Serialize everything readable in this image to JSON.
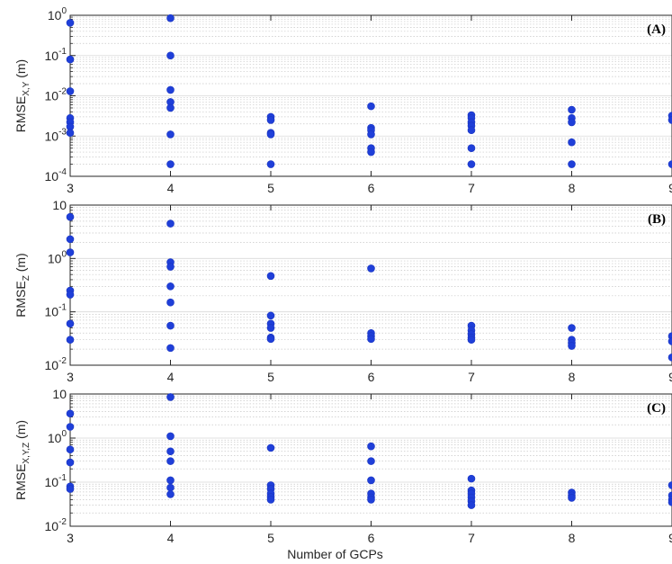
{
  "chart_data": [
    {
      "type": "scatter",
      "panel_label": "(A)",
      "ylabel_main": "RMSE",
      "ylabel_sub": "X,Y",
      "ylabel_unit": " (m)",
      "yscale": "log",
      "ylim": [
        0.0001,
        1
      ],
      "xlim": [
        3,
        9
      ],
      "xticks": [
        "3",
        "4",
        "5",
        "6",
        "7",
        "8",
        "9"
      ],
      "yticks": [
        {
          "value": 0.0001,
          "base": "10",
          "exp": "-4"
        },
        {
          "value": 0.001,
          "base": "10",
          "exp": "-3"
        },
        {
          "value": 0.01,
          "base": "10",
          "exp": "-2"
        },
        {
          "value": 0.1,
          "base": "10",
          "exp": "-1"
        },
        {
          "value": 1,
          "base": "10",
          "exp": "0"
        }
      ],
      "grid": true,
      "marker_color": "#1f3fd9",
      "points": [
        {
          "x": 3,
          "y": 0.65
        },
        {
          "x": 3,
          "y": 0.08
        },
        {
          "x": 3,
          "y": 0.013
        },
        {
          "x": 3,
          "y": 0.0028
        },
        {
          "x": 3,
          "y": 0.0022
        },
        {
          "x": 3,
          "y": 0.0017
        },
        {
          "x": 3,
          "y": 0.0012
        },
        {
          "x": 4,
          "y": 0.85
        },
        {
          "x": 4,
          "y": 0.1
        },
        {
          "x": 4,
          "y": 0.014
        },
        {
          "x": 4,
          "y": 0.007
        },
        {
          "x": 4,
          "y": 0.005
        },
        {
          "x": 4,
          "y": 0.0011
        },
        {
          "x": 4,
          "y": 0.0002
        },
        {
          "x": 5,
          "y": 0.003
        },
        {
          "x": 5,
          "y": 0.0025
        },
        {
          "x": 5,
          "y": 0.0012
        },
        {
          "x": 5,
          "y": 0.0011
        },
        {
          "x": 5,
          "y": 0.0002
        },
        {
          "x": 6,
          "y": 0.0055
        },
        {
          "x": 6,
          "y": 0.0016
        },
        {
          "x": 6,
          "y": 0.0014
        },
        {
          "x": 6,
          "y": 0.0011
        },
        {
          "x": 6,
          "y": 0.0005
        },
        {
          "x": 6,
          "y": 0.0004
        },
        {
          "x": 7,
          "y": 0.0033
        },
        {
          "x": 7,
          "y": 0.0028
        },
        {
          "x": 7,
          "y": 0.0022
        },
        {
          "x": 7,
          "y": 0.0018
        },
        {
          "x": 7,
          "y": 0.0014
        },
        {
          "x": 7,
          "y": 0.0005
        },
        {
          "x": 7,
          "y": 0.0002
        },
        {
          "x": 8,
          "y": 0.0045
        },
        {
          "x": 8,
          "y": 0.0028
        },
        {
          "x": 8,
          "y": 0.0022
        },
        {
          "x": 8,
          "y": 0.0007
        },
        {
          "x": 8,
          "y": 0.0002
        },
        {
          "x": 9,
          "y": 0.0032
        },
        {
          "x": 9,
          "y": 0.0025
        },
        {
          "x": 9,
          "y": 0.0002
        }
      ]
    },
    {
      "type": "scatter",
      "panel_label": "(B)",
      "ylabel_main": "RMSE",
      "ylabel_sub": "Z",
      "ylabel_unit": " (m)",
      "yscale": "log",
      "ylim": [
        0.01,
        10
      ],
      "xlim": [
        3,
        9
      ],
      "xticks": [
        "3",
        "4",
        "5",
        "6",
        "7",
        "8",
        "9"
      ],
      "yticks": [
        {
          "value": 0.01,
          "base": "10",
          "exp": "-2"
        },
        {
          "value": 0.1,
          "base": "10",
          "exp": "-1"
        },
        {
          "value": 1,
          "base": "10",
          "exp": "0"
        },
        {
          "value": 10,
          "base": "10",
          "exp": ""
        }
      ],
      "grid": true,
      "marker_color": "#1f3fd9",
      "points": [
        {
          "x": 3,
          "y": 6
        },
        {
          "x": 3,
          "y": 2.3
        },
        {
          "x": 3,
          "y": 1.3
        },
        {
          "x": 3,
          "y": 0.25
        },
        {
          "x": 3,
          "y": 0.21
        },
        {
          "x": 3,
          "y": 0.06
        },
        {
          "x": 3,
          "y": 0.03
        },
        {
          "x": 4,
          "y": 4.5
        },
        {
          "x": 4,
          "y": 0.85
        },
        {
          "x": 4,
          "y": 0.7
        },
        {
          "x": 4,
          "y": 0.3
        },
        {
          "x": 4,
          "y": 0.15
        },
        {
          "x": 4,
          "y": 0.055
        },
        {
          "x": 4,
          "y": 0.021
        },
        {
          "x": 5,
          "y": 0.47
        },
        {
          "x": 5,
          "y": 0.085
        },
        {
          "x": 5,
          "y": 0.06
        },
        {
          "x": 5,
          "y": 0.05
        },
        {
          "x": 5,
          "y": 0.033
        },
        {
          "x": 5,
          "y": 0.031
        },
        {
          "x": 6,
          "y": 0.65
        },
        {
          "x": 6,
          "y": 0.04
        },
        {
          "x": 6,
          "y": 0.035
        },
        {
          "x": 6,
          "y": 0.031
        },
        {
          "x": 7,
          "y": 0.055
        },
        {
          "x": 7,
          "y": 0.045
        },
        {
          "x": 7,
          "y": 0.038
        },
        {
          "x": 7,
          "y": 0.033
        },
        {
          "x": 7,
          "y": 0.03
        },
        {
          "x": 8,
          "y": 0.05
        },
        {
          "x": 8,
          "y": 0.03
        },
        {
          "x": 8,
          "y": 0.026
        },
        {
          "x": 8,
          "y": 0.023
        },
        {
          "x": 9,
          "y": 0.035
        },
        {
          "x": 9,
          "y": 0.028
        },
        {
          "x": 9,
          "y": 0.014
        }
      ]
    },
    {
      "type": "scatter",
      "panel_label": "(C)",
      "ylabel_main": "RMSE",
      "ylabel_sub": "X,Y,Z",
      "ylabel_unit": " (m)",
      "xlabel": "Number of GCPs",
      "yscale": "log",
      "ylim": [
        0.01,
        10
      ],
      "xlim": [
        3,
        9
      ],
      "xticks": [
        "3",
        "4",
        "5",
        "6",
        "7",
        "8",
        "9"
      ],
      "yticks": [
        {
          "value": 0.01,
          "base": "10",
          "exp": "-2"
        },
        {
          "value": 0.1,
          "base": "10",
          "exp": "-1"
        },
        {
          "value": 1,
          "base": "10",
          "exp": "0"
        },
        {
          "value": 10,
          "base": "10",
          "exp": ""
        }
      ],
      "grid": true,
      "marker_color": "#1f3fd9",
      "points": [
        {
          "x": 3,
          "y": 3.6
        },
        {
          "x": 3,
          "y": 1.8
        },
        {
          "x": 3,
          "y": 0.55
        },
        {
          "x": 3,
          "y": 0.28
        },
        {
          "x": 3,
          "y": 0.08
        },
        {
          "x": 3,
          "y": 0.07
        },
        {
          "x": 4,
          "y": 8.5
        },
        {
          "x": 4,
          "y": 1.1
        },
        {
          "x": 4,
          "y": 0.5
        },
        {
          "x": 4,
          "y": 0.3
        },
        {
          "x": 4,
          "y": 0.11
        },
        {
          "x": 4,
          "y": 0.075
        },
        {
          "x": 4,
          "y": 0.053
        },
        {
          "x": 5,
          "y": 0.6
        },
        {
          "x": 5,
          "y": 0.085
        },
        {
          "x": 5,
          "y": 0.07
        },
        {
          "x": 5,
          "y": 0.055
        },
        {
          "x": 5,
          "y": 0.046
        },
        {
          "x": 5,
          "y": 0.04
        },
        {
          "x": 6,
          "y": 0.65
        },
        {
          "x": 6,
          "y": 0.3
        },
        {
          "x": 6,
          "y": 0.11
        },
        {
          "x": 6,
          "y": 0.055
        },
        {
          "x": 6,
          "y": 0.045
        },
        {
          "x": 6,
          "y": 0.04
        },
        {
          "x": 7,
          "y": 0.12
        },
        {
          "x": 7,
          "y": 0.065
        },
        {
          "x": 7,
          "y": 0.055
        },
        {
          "x": 7,
          "y": 0.045
        },
        {
          "x": 7,
          "y": 0.037
        },
        {
          "x": 7,
          "y": 0.03
        },
        {
          "x": 8,
          "y": 0.058
        },
        {
          "x": 8,
          "y": 0.05
        },
        {
          "x": 8,
          "y": 0.044
        },
        {
          "x": 9,
          "y": 0.085
        },
        {
          "x": 9,
          "y": 0.05
        },
        {
          "x": 9,
          "y": 0.04
        },
        {
          "x": 9,
          "y": 0.035
        }
      ]
    }
  ]
}
